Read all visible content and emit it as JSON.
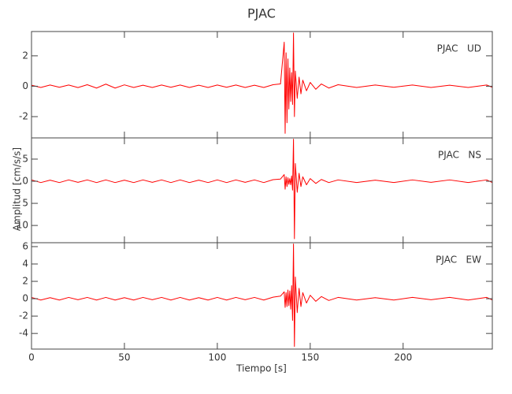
{
  "title": "PJAC",
  "xlabel": "Tiempo [s]",
  "ylabel": "Amplitud [cm/s/s]",
  "chart_data": [
    {
      "type": "line",
      "label": "PJAC   UD",
      "color": "#ff0000",
      "xlim": [
        0,
        248
      ],
      "xticks": [
        0,
        50,
        100,
        150,
        200
      ],
      "ylim": [
        -3.4,
        3.6
      ],
      "yticks": [
        -2,
        0,
        2
      ],
      "x": [
        0,
        5,
        10,
        15,
        20,
        25,
        30,
        35,
        40,
        45,
        50,
        55,
        60,
        65,
        70,
        75,
        80,
        85,
        90,
        95,
        100,
        105,
        110,
        115,
        120,
        125,
        130,
        134,
        136,
        136.5,
        137,
        137.5,
        138,
        138.5,
        139,
        139.5,
        140,
        140.5,
        141,
        141.5,
        142,
        143,
        144,
        145,
        146,
        148,
        150,
        153,
        156,
        160,
        165,
        175,
        185,
        195,
        205,
        215,
        225,
        235,
        245,
        248
      ],
      "values": [
        0.07,
        -0.08,
        0.08,
        -0.07,
        0.08,
        -0.09,
        0.1,
        -0.12,
        0.14,
        -0.12,
        0.09,
        -0.08,
        0.07,
        -0.08,
        0.08,
        -0.07,
        0.08,
        -0.08,
        0.07,
        -0.08,
        0.08,
        -0.07,
        0.08,
        -0.08,
        0.07,
        -0.08,
        0.1,
        0.15,
        2.9,
        -3.1,
        2.2,
        -2.4,
        1.8,
        -1.5,
        1.2,
        -1.0,
        0.9,
        -1.2,
        3.5,
        -2.0,
        1.0,
        -0.8,
        0.6,
        -0.5,
        0.4,
        -0.3,
        0.25,
        -0.2,
        0.15,
        -0.12,
        0.1,
        -0.08,
        0.08,
        -0.07,
        0.08,
        -0.08,
        0.07,
        -0.08,
        0.08,
        -0.07
      ]
    },
    {
      "type": "line",
      "label": "PJAC   NS",
      "color": "#ff0000",
      "xlim": [
        0,
        248
      ],
      "xticks": [
        0,
        50,
        100,
        150,
        200
      ],
      "ylim": [
        -13.9,
        9.8
      ],
      "yticks": [
        {
          "value": 5,
          "label": "5"
        },
        0,
        {
          "value": -5,
          "label": "5"
        },
        {
          "value": -10,
          "label": "10"
        }
      ],
      "x": [
        0,
        5,
        10,
        15,
        20,
        25,
        30,
        35,
        40,
        45,
        50,
        55,
        60,
        65,
        70,
        75,
        80,
        85,
        90,
        95,
        100,
        105,
        110,
        115,
        120,
        125,
        130,
        134,
        136,
        136.5,
        137,
        137.5,
        138,
        138.5,
        139,
        139.5,
        140,
        140.5,
        141,
        141.5,
        142,
        143,
        144,
        145,
        146,
        148,
        150,
        153,
        156,
        160,
        165,
        175,
        185,
        195,
        205,
        215,
        225,
        235,
        245,
        248
      ],
      "values": [
        0.3,
        -0.3,
        0.25,
        -0.3,
        0.3,
        -0.25,
        0.3,
        -0.3,
        0.3,
        -0.3,
        0.25,
        -0.3,
        0.3,
        -0.25,
        0.3,
        -0.3,
        0.3,
        -0.3,
        0.25,
        -0.3,
        0.3,
        -0.3,
        0.3,
        -0.25,
        0.3,
        -0.3,
        0.35,
        0.5,
        1.5,
        -1.8,
        1.0,
        -1.2,
        0.8,
        -0.7,
        0.6,
        -0.8,
        1.2,
        -2,
        9.5,
        -13,
        4,
        -2.5,
        1.8,
        -1.2,
        1.0,
        -0.8,
        0.6,
        -0.5,
        0.4,
        -0.3,
        0.3,
        -0.3,
        0.25,
        -0.3,
        0.3,
        -0.25,
        0.3,
        -0.3,
        0.3,
        -0.3
      ]
    },
    {
      "type": "line",
      "label": "PJAC   EW",
      "color": "#ff0000",
      "xlim": [
        0,
        248
      ],
      "xticks": [
        0,
        50,
        100,
        150,
        200
      ],
      "ylim": [
        -5.8,
        6.45
      ],
      "yticks": [
        -4,
        -2,
        0,
        2,
        4,
        6
      ],
      "x": [
        0,
        5,
        10,
        15,
        20,
        25,
        30,
        35,
        40,
        45,
        50,
        55,
        60,
        65,
        70,
        75,
        80,
        85,
        90,
        95,
        100,
        105,
        110,
        115,
        120,
        125,
        130,
        134,
        136,
        136.5,
        137,
        137.5,
        138,
        138.5,
        139,
        139.5,
        140,
        140.5,
        141,
        141.5,
        142,
        143,
        144,
        145,
        146,
        148,
        150,
        153,
        156,
        160,
        165,
        175,
        185,
        195,
        205,
        215,
        225,
        235,
        245,
        248
      ],
      "values": [
        0.15,
        -0.15,
        0.12,
        -0.15,
        0.15,
        -0.12,
        0.15,
        -0.15,
        0.15,
        -0.15,
        0.12,
        -0.15,
        0.15,
        -0.12,
        0.15,
        -0.15,
        0.15,
        -0.15,
        0.12,
        -0.15,
        0.15,
        -0.15,
        0.15,
        -0.12,
        0.15,
        -0.15,
        0.18,
        0.3,
        0.8,
        -1.0,
        0.7,
        -0.9,
        1.0,
        -0.8,
        0.9,
        -1.2,
        1.5,
        -2.5,
        6.3,
        -5.5,
        2.5,
        -1.6,
        1.2,
        -0.9,
        0.7,
        -0.5,
        0.4,
        -0.3,
        0.25,
        -0.2,
        0.15,
        -0.15,
        0.12,
        -0.15,
        0.15,
        -0.12,
        0.15,
        -0.15,
        0.15,
        -0.15
      ]
    }
  ]
}
